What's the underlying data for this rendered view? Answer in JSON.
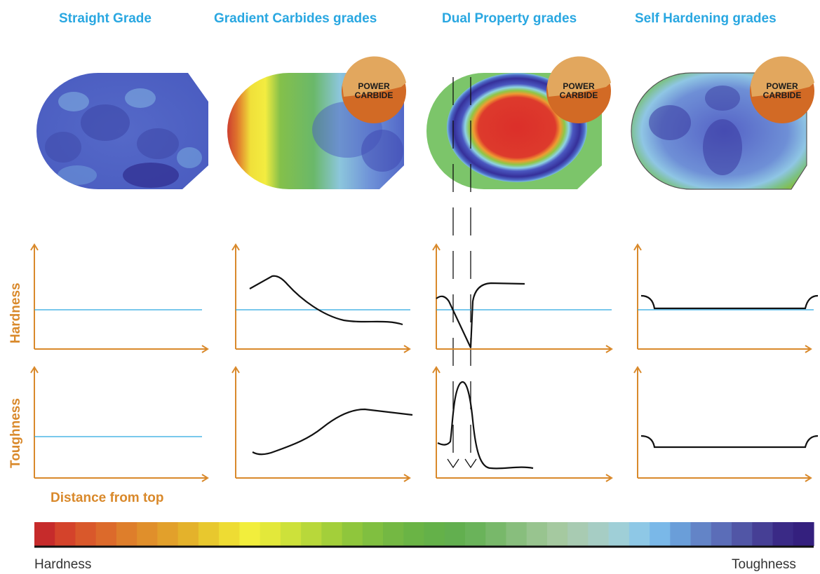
{
  "columns": [
    {
      "title": "Straight Grade",
      "badge": false
    },
    {
      "title": "Gradient Carbides grades",
      "badge": true
    },
    {
      "title": "Dual Property grades",
      "badge": true
    },
    {
      "title": "Self Hardening grades",
      "badge": true
    }
  ],
  "badge": {
    "line1": "POWER",
    "line2": "CARBIDE",
    "fill": "#d26a25",
    "highlight": "#e2a75e"
  },
  "axes": {
    "hardness": "Hardness",
    "toughness": "Toughness",
    "x": "Distance from top"
  },
  "scale": {
    "left": "Hardness",
    "right": "Toughness",
    "colors": [
      "#c62b2b",
      "#d4432b",
      "#d9582b",
      "#dc6a2b",
      "#de7e2b",
      "#e08f2b",
      "#e2a02b",
      "#e4b22b",
      "#e8c82e",
      "#eedc33",
      "#f2ee3c",
      "#e3e83a",
      "#cde13a",
      "#b8d83a",
      "#a3cf3a",
      "#8fc63c",
      "#80bf40",
      "#74b843",
      "#6ab445",
      "#64b149",
      "#62af4f",
      "#6ab35a",
      "#78b86a",
      "#88be7d",
      "#98c48f",
      "#a5c9a0",
      "#a8cbb2",
      "#a6cdc4",
      "#9fcfd7",
      "#8ec8e6",
      "#7ab8e8",
      "#6a9ed9",
      "#6384c7",
      "#5b6db8",
      "#5156a6",
      "#463f95",
      "#3a2a86",
      "#34207e"
    ],
    "accent": "#29a7e1",
    "axis_color": "#d9892b"
  }
}
